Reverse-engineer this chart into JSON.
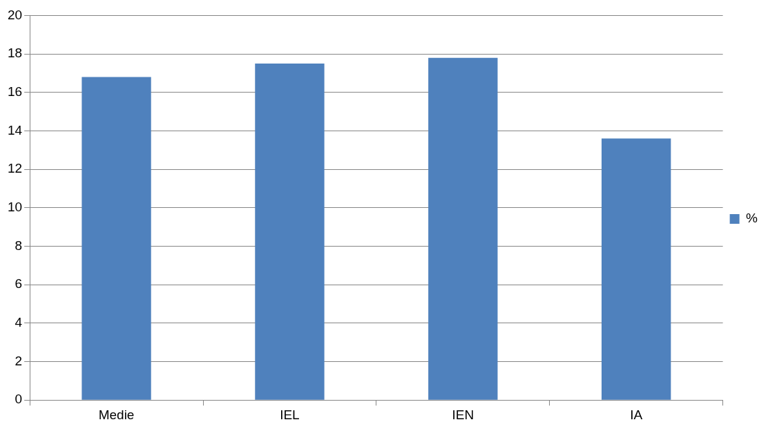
{
  "chart_data": {
    "type": "bar",
    "categories": [
      "Medie",
      "IEL",
      "IEN",
      "IA"
    ],
    "series": [
      {
        "name": "%",
        "color": "#4f81bd",
        "values": [
          16.8,
          17.5,
          17.8,
          13.6
        ]
      }
    ],
    "ylim": [
      0,
      20
    ],
    "yticks": [
      0,
      2,
      4,
      6,
      8,
      10,
      12,
      14,
      16,
      18,
      20
    ],
    "grid": "y",
    "legend": "right"
  }
}
